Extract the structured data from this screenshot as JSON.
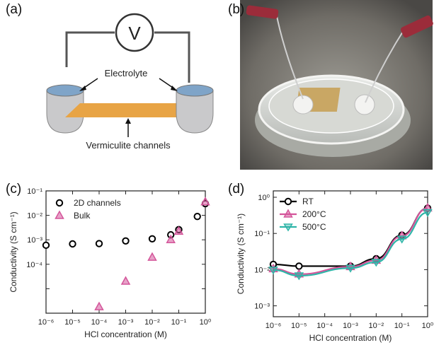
{
  "panels": {
    "a": "(a)",
    "b": "(b)",
    "c": "(c)",
    "d": "(d)"
  },
  "schematic": {
    "meter_symbol": "V",
    "electrolyte_label": "Electrolyte",
    "channel_label": "Vermiculite channels",
    "channel_color": "#e8a445"
  },
  "photo": {
    "description_hidden": ""
  },
  "chart_data": [
    {
      "type": "scatter",
      "panel": "c",
      "xlabel": "HCl concentration (M)",
      "ylabel": "Conductivity (S cm⁻¹)",
      "xscale": "log",
      "yscale": "log",
      "xlim": [
        1e-06,
        1
      ],
      "ylim": [
        1e-05,
        1
      ],
      "x_ticks": [
        "10⁻⁶",
        "10⁻⁵",
        "10⁻⁴",
        "10⁻³",
        "10⁻²",
        "10⁻¹",
        "10⁰"
      ],
      "y_ticks": [
        "10⁻¹",
        "10⁻²",
        "10⁻³",
        "10⁻⁴"
      ],
      "legend": "top-left",
      "series": [
        {
          "name": "2D channels",
          "marker": "circle",
          "color": "#000000",
          "points": [
            [
              1e-06,
              0.006
            ],
            [
              1e-05,
              0.0068
            ],
            [
              0.0001,
              0.007
            ],
            [
              0.001,
              0.009
            ],
            [
              0.01,
              0.011
            ],
            [
              0.05,
              0.016
            ],
            [
              0.1,
              0.026
            ],
            [
              0.5,
              0.09
            ],
            [
              1,
              0.3
            ]
          ]
        },
        {
          "name": "Bulk",
          "marker": "triangle",
          "color": "#d4559a",
          "points": [
            [
              0.0001,
              1.8e-05
            ],
            [
              0.001,
              0.0002
            ],
            [
              0.01,
              0.0019
            ],
            [
              0.05,
              0.01
            ],
            [
              0.1,
              0.022
            ],
            [
              1,
              0.35
            ]
          ]
        }
      ]
    },
    {
      "type": "line",
      "panel": "d",
      "xlabel": "HCl concentration (M)",
      "ylabel": "Conductivity (S cm⁻¹)",
      "xscale": "log",
      "yscale": "log",
      "xlim": [
        1e-06,
        1
      ],
      "ylim": [
        0.0005,
        1.5
      ],
      "x_ticks": [
        "10⁻⁶",
        "10⁻⁵",
        "10⁻⁴",
        "10⁻³",
        "10⁻²",
        "10⁻¹",
        "10⁰"
      ],
      "y_ticks": [
        "10⁰",
        "10⁻¹",
        "10⁻²",
        "10⁻³"
      ],
      "legend": "top-left",
      "series": [
        {
          "name": "RT",
          "marker": "circle",
          "color": "#000000",
          "points": [
            [
              1e-06,
              0.014
            ],
            [
              1e-05,
              0.0125
            ],
            [
              0.001,
              0.0125
            ],
            [
              0.01,
              0.02
            ],
            [
              0.1,
              0.09
            ],
            [
              1,
              0.5
            ]
          ]
        },
        {
          "name": "200°C",
          "marker": "triangle",
          "color": "#d4559a",
          "points": [
            [
              1e-06,
              0.0105
            ],
            [
              1e-05,
              0.0075
            ],
            [
              0.001,
              0.012
            ],
            [
              0.01,
              0.018
            ],
            [
              0.1,
              0.085
            ],
            [
              1,
              0.5
            ]
          ]
        },
        {
          "name": "500°C",
          "marker": "triangle-down",
          "color": "#2fb5a8",
          "points": [
            [
              1e-06,
              0.0098
            ],
            [
              1e-05,
              0.0068
            ],
            [
              0.001,
              0.011
            ],
            [
              0.01,
              0.016
            ],
            [
              0.1,
              0.07
            ],
            [
              1,
              0.38
            ]
          ]
        }
      ]
    }
  ]
}
